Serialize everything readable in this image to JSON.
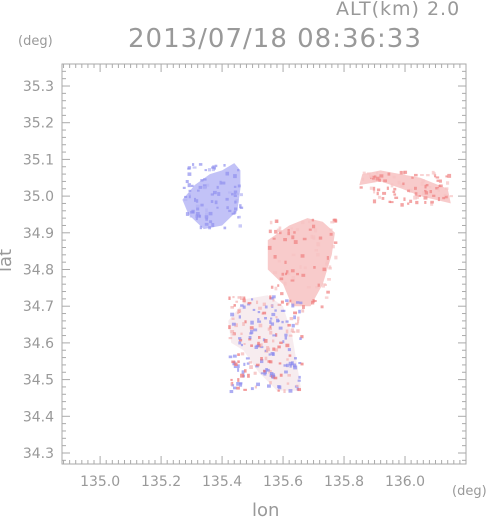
{
  "header": {
    "alt_label": "ALT(km) 2.0",
    "datetime": "2013/07/18 08:36:33"
  },
  "chart_data": {
    "type": "heatmap",
    "xlabel": "lon",
    "ylabel": "lat",
    "x_unit": "(deg)",
    "y_unit": "(deg)",
    "xlim": [
      134.875,
      136.2
    ],
    "ylim": [
      34.27,
      35.36
    ],
    "x_ticks": [
      135.0,
      135.2,
      135.4,
      135.6,
      135.8,
      136.0
    ],
    "x_tick_labels": [
      "135.0",
      "135.2",
      "135.4",
      "135.6",
      "135.8",
      "136.0"
    ],
    "y_ticks": [
      34.3,
      34.4,
      34.5,
      34.6,
      34.7,
      34.8,
      34.9,
      35.0,
      35.1,
      35.2,
      35.3
    ],
    "y_tick_labels": [
      "34.3",
      "34.4",
      "34.5",
      "34.6",
      "34.7",
      "34.8",
      "34.9",
      "35.0",
      "35.1",
      "35.2",
      "35.3"
    ],
    "grid": false,
    "colors": {
      "negative": "#9a9af2",
      "positive": "#f2a0a0",
      "strong_positive": "#ef8080",
      "axis": "#aaaaaa"
    },
    "regions": [
      {
        "name": "blue-cluster-north",
        "sign": "negative",
        "outline": [
          [
            135.27,
            34.99
          ],
          [
            135.31,
            35.03
          ],
          [
            135.36,
            35.06
          ],
          [
            135.4,
            35.07
          ],
          [
            135.44,
            35.09
          ],
          [
            135.46,
            35.07
          ],
          [
            135.46,
            35.02
          ],
          [
            135.45,
            34.96
          ],
          [
            135.4,
            34.92
          ],
          [
            135.34,
            34.91
          ],
          [
            135.29,
            34.95
          ]
        ]
      },
      {
        "name": "red-cluster-central",
        "sign": "positive",
        "outline": [
          [
            135.55,
            34.88
          ],
          [
            135.62,
            34.92
          ],
          [
            135.68,
            34.94
          ],
          [
            135.73,
            34.93
          ],
          [
            135.77,
            34.9
          ],
          [
            135.76,
            34.84
          ],
          [
            135.73,
            34.76
          ],
          [
            135.69,
            34.7
          ],
          [
            135.63,
            34.7
          ],
          [
            135.6,
            34.76
          ],
          [
            135.55,
            34.8
          ]
        ]
      },
      {
        "name": "red-cluster-east",
        "sign": "positive",
        "outline": [
          [
            135.85,
            35.03
          ],
          [
            135.92,
            35.04
          ],
          [
            135.99,
            35.02
          ],
          [
            136.05,
            35.0
          ],
          [
            136.15,
            34.98
          ],
          [
            136.14,
            35.02
          ],
          [
            136.05,
            35.05
          ],
          [
            135.92,
            35.07
          ],
          [
            135.86,
            35.06
          ]
        ]
      },
      {
        "name": "mixed-cluster-south",
        "sign": "mixed",
        "outline": [
          [
            135.42,
            34.66
          ],
          [
            135.48,
            34.72
          ],
          [
            135.55,
            34.73
          ],
          [
            135.6,
            34.7
          ],
          [
            135.63,
            34.62
          ],
          [
            135.65,
            34.52
          ],
          [
            135.66,
            34.47
          ],
          [
            135.58,
            34.47
          ],
          [
            135.52,
            34.52
          ],
          [
            135.47,
            34.58
          ],
          [
            135.43,
            34.6
          ]
        ]
      }
    ]
  }
}
